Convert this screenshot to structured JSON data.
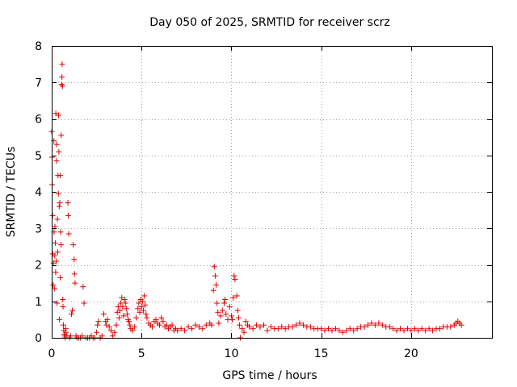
{
  "chart_data": {
    "type": "scatter",
    "title": "Day 050 of 2025, SRMTID for receiver scrz",
    "xlabel": "GPS time / hours",
    "ylabel": "SRMTID / TECUs",
    "xlim": [
      0,
      24.5
    ],
    "ylim": [
      0,
      8
    ],
    "x_ticks": [
      0,
      5,
      10,
      15,
      20
    ],
    "y_ticks": [
      0,
      1,
      2,
      3,
      4,
      5,
      6,
      7,
      8
    ],
    "x_tick_labels": [
      "0",
      "5",
      "10",
      "15",
      "20"
    ],
    "y_tick_labels": [
      "0",
      "1",
      "2",
      "3",
      "4",
      "5",
      "6",
      "7",
      "8"
    ],
    "grid": true,
    "marker": "+",
    "color": "#e00000",
    "series": [
      {
        "name": "SRMTID",
        "points": [
          [
            0.0,
            5.65
          ],
          [
            0.02,
            4.95
          ],
          [
            0.03,
            4.2
          ],
          [
            0.05,
            3.35
          ],
          [
            0.06,
            2.3
          ],
          [
            0.08,
            1.45
          ],
          [
            0.1,
            2.05
          ],
          [
            0.12,
            5.4
          ],
          [
            0.13,
            2.9
          ],
          [
            0.15,
            1.35
          ],
          [
            0.17,
            2.25
          ],
          [
            0.18,
            3.05
          ],
          [
            0.2,
            2.6
          ],
          [
            0.22,
            1.8
          ],
          [
            0.23,
            6.15
          ],
          [
            0.25,
            2.1
          ],
          [
            0.27,
            4.85
          ],
          [
            0.28,
            5.3
          ],
          [
            0.3,
            0.95
          ],
          [
            0.32,
            3.25
          ],
          [
            0.33,
            2.35
          ],
          [
            0.35,
            4.45
          ],
          [
            0.37,
            3.95
          ],
          [
            0.38,
            6.1
          ],
          [
            0.4,
            5.1
          ],
          [
            0.42,
            3.6
          ],
          [
            0.43,
            0.5
          ],
          [
            0.45,
            3.7
          ],
          [
            0.47,
            4.45
          ],
          [
            0.48,
            1.65
          ],
          [
            0.5,
            2.9
          ],
          [
            0.52,
            2.55
          ],
          [
            0.53,
            5.55
          ],
          [
            0.55,
            6.95
          ],
          [
            0.57,
            7.15
          ],
          [
            0.58,
            7.5
          ],
          [
            0.6,
            6.9
          ],
          [
            0.62,
            1.05
          ],
          [
            0.63,
            0.85
          ],
          [
            0.65,
            0.35
          ],
          [
            0.67,
            0.2
          ],
          [
            0.7,
            0.1
          ],
          [
            0.72,
            0.05
          ],
          [
            0.75,
            0.0
          ],
          [
            0.78,
            0.25
          ],
          [
            0.8,
            0.15
          ],
          [
            0.85,
            0.05
          ],
          [
            0.9,
            3.7
          ],
          [
            0.92,
            3.35
          ],
          [
            0.95,
            2.85
          ],
          [
            1.0,
            0.0
          ],
          [
            1.05,
            0.05
          ],
          [
            1.1,
            0.65
          ],
          [
            1.15,
            0.75
          ],
          [
            1.2,
            2.55
          ],
          [
            1.25,
            2.15
          ],
          [
            1.27,
            1.75
          ],
          [
            1.3,
            1.5
          ],
          [
            1.35,
            0.05
          ],
          [
            1.4,
            0.0
          ],
          [
            1.5,
            0.0
          ],
          [
            1.6,
            0.0
          ],
          [
            1.7,
            0.05
          ],
          [
            1.75,
            1.4
          ],
          [
            1.8,
            0.95
          ],
          [
            1.9,
            0.0
          ],
          [
            2.0,
            0.0
          ],
          [
            2.1,
            0.0
          ],
          [
            2.2,
            0.05
          ],
          [
            2.3,
            0.0
          ],
          [
            2.4,
            0.0
          ],
          [
            2.5,
            0.15
          ],
          [
            2.55,
            0.35
          ],
          [
            2.6,
            0.45
          ],
          [
            2.7,
            0.0
          ],
          [
            2.8,
            0.05
          ],
          [
            2.9,
            0.65
          ],
          [
            3.0,
            0.45
          ],
          [
            3.05,
            0.35
          ],
          [
            3.1,
            0.5
          ],
          [
            3.2,
            0.3
          ],
          [
            3.3,
            0.2
          ],
          [
            3.4,
            0.05
          ],
          [
            3.5,
            0.15
          ],
          [
            3.6,
            0.35
          ],
          [
            3.65,
            0.7
          ],
          [
            3.7,
            0.85
          ],
          [
            3.75,
            0.55
          ],
          [
            3.8,
            0.75
          ],
          [
            3.85,
            0.95
          ],
          [
            3.9,
            1.1
          ],
          [
            3.95,
            0.85
          ],
          [
            4.0,
            0.6
          ],
          [
            4.05,
            1.05
          ],
          [
            4.1,
            0.95
          ],
          [
            4.15,
            0.8
          ],
          [
            4.2,
            0.65
          ],
          [
            4.25,
            0.5
          ],
          [
            4.3,
            0.45
          ],
          [
            4.35,
            0.35
          ],
          [
            4.4,
            0.25
          ],
          [
            4.5,
            0.2
          ],
          [
            4.6,
            0.3
          ],
          [
            4.7,
            0.55
          ],
          [
            4.8,
            0.8
          ],
          [
            4.85,
            0.95
          ],
          [
            4.9,
            0.7
          ],
          [
            4.95,
            1.05
          ],
          [
            5.0,
            0.85
          ],
          [
            5.05,
            1.0
          ],
          [
            5.1,
            0.75
          ],
          [
            5.15,
            1.15
          ],
          [
            5.2,
            0.9
          ],
          [
            5.25,
            0.65
          ],
          [
            5.3,
            0.55
          ],
          [
            5.4,
            0.4
          ],
          [
            5.5,
            0.35
          ],
          [
            5.6,
            0.3
          ],
          [
            5.7,
            0.45
          ],
          [
            5.8,
            0.5
          ],
          [
            5.9,
            0.4
          ],
          [
            6.0,
            0.35
          ],
          [
            6.1,
            0.55
          ],
          [
            6.2,
            0.45
          ],
          [
            6.3,
            0.3
          ],
          [
            6.4,
            0.35
          ],
          [
            6.5,
            0.25
          ],
          [
            6.6,
            0.3
          ],
          [
            6.7,
            0.35
          ],
          [
            6.8,
            0.2
          ],
          [
            6.9,
            0.25
          ],
          [
            7.0,
            0.2
          ],
          [
            7.2,
            0.25
          ],
          [
            7.4,
            0.2
          ],
          [
            7.6,
            0.3
          ],
          [
            7.8,
            0.25
          ],
          [
            8.0,
            0.35
          ],
          [
            8.2,
            0.3
          ],
          [
            8.4,
            0.25
          ],
          [
            8.6,
            0.35
          ],
          [
            8.8,
            0.4
          ],
          [
            8.9,
            0.35
          ],
          [
            9.0,
            1.3
          ],
          [
            9.05,
            1.95
          ],
          [
            9.1,
            1.7
          ],
          [
            9.15,
            1.45
          ],
          [
            9.2,
            0.95
          ],
          [
            9.25,
            0.7
          ],
          [
            9.3,
            0.4
          ],
          [
            9.4,
            0.6
          ],
          [
            9.5,
            0.75
          ],
          [
            9.6,
            0.95
          ],
          [
            9.65,
            1.05
          ],
          [
            9.7,
            0.65
          ],
          [
            9.8,
            0.5
          ],
          [
            9.9,
            0.85
          ],
          [
            10.0,
            0.6
          ],
          [
            10.05,
            0.5
          ],
          [
            10.1,
            1.1
          ],
          [
            10.15,
            1.7
          ],
          [
            10.2,
            1.6
          ],
          [
            10.3,
            1.15
          ],
          [
            10.35,
            0.75
          ],
          [
            10.4,
            0.55
          ],
          [
            10.45,
            0.35
          ],
          [
            10.5,
            0.0
          ],
          [
            10.6,
            0.25
          ],
          [
            10.7,
            0.15
          ],
          [
            10.8,
            0.45
          ],
          [
            10.9,
            0.35
          ],
          [
            11.0,
            0.3
          ],
          [
            11.2,
            0.25
          ],
          [
            11.4,
            0.35
          ],
          [
            11.6,
            0.3
          ],
          [
            11.8,
            0.35
          ],
          [
            12.0,
            0.2
          ],
          [
            12.2,
            0.3
          ],
          [
            12.4,
            0.25
          ],
          [
            12.6,
            0.25
          ],
          [
            12.8,
            0.3
          ],
          [
            13.0,
            0.25
          ],
          [
            13.2,
            0.3
          ],
          [
            13.4,
            0.3
          ],
          [
            13.6,
            0.35
          ],
          [
            13.8,
            0.4
          ],
          [
            14.0,
            0.35
          ],
          [
            14.2,
            0.3
          ],
          [
            14.4,
            0.3
          ],
          [
            14.6,
            0.25
          ],
          [
            14.8,
            0.25
          ],
          [
            15.0,
            0.25
          ],
          [
            15.2,
            0.2
          ],
          [
            15.4,
            0.25
          ],
          [
            15.6,
            0.2
          ],
          [
            15.8,
            0.25
          ],
          [
            16.0,
            0.2
          ],
          [
            16.2,
            0.15
          ],
          [
            16.4,
            0.2
          ],
          [
            16.6,
            0.25
          ],
          [
            16.8,
            0.2
          ],
          [
            17.0,
            0.25
          ],
          [
            17.2,
            0.3
          ],
          [
            17.4,
            0.3
          ],
          [
            17.6,
            0.35
          ],
          [
            17.8,
            0.4
          ],
          [
            18.0,
            0.35
          ],
          [
            18.2,
            0.4
          ],
          [
            18.4,
            0.35
          ],
          [
            18.6,
            0.3
          ],
          [
            18.8,
            0.3
          ],
          [
            19.0,
            0.25
          ],
          [
            19.2,
            0.2
          ],
          [
            19.4,
            0.25
          ],
          [
            19.6,
            0.2
          ],
          [
            19.8,
            0.25
          ],
          [
            20.0,
            0.2
          ],
          [
            20.2,
            0.25
          ],
          [
            20.4,
            0.2
          ],
          [
            20.6,
            0.25
          ],
          [
            20.8,
            0.2
          ],
          [
            21.0,
            0.25
          ],
          [
            21.2,
            0.2
          ],
          [
            21.4,
            0.25
          ],
          [
            21.6,
            0.25
          ],
          [
            21.8,
            0.3
          ],
          [
            22.0,
            0.3
          ],
          [
            22.2,
            0.3
          ],
          [
            22.4,
            0.35
          ],
          [
            22.5,
            0.4
          ],
          [
            22.6,
            0.45
          ],
          [
            22.7,
            0.4
          ],
          [
            22.8,
            0.35
          ]
        ]
      }
    ]
  }
}
